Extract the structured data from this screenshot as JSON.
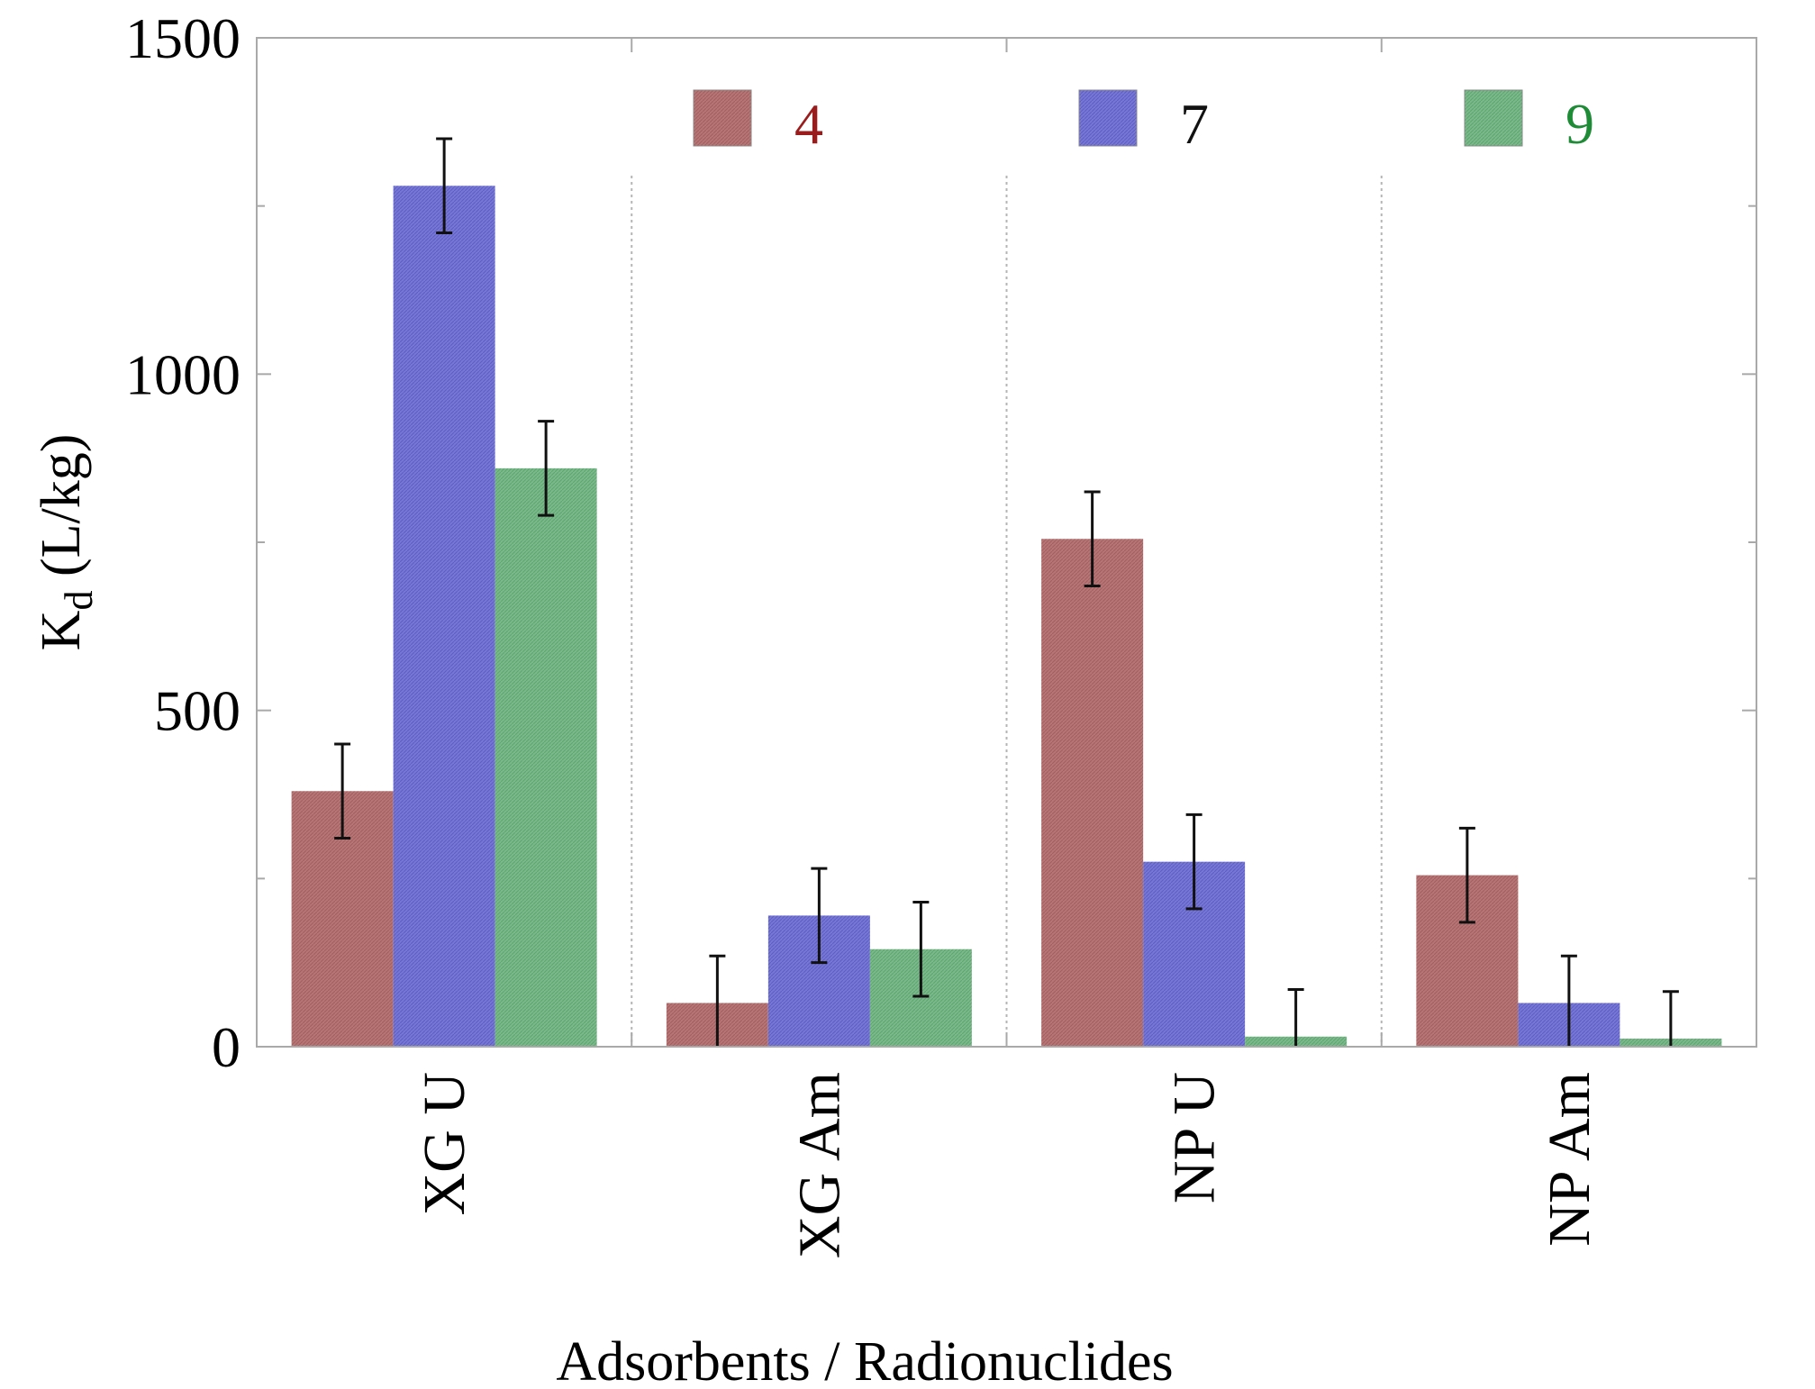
{
  "chart_data": {
    "type": "bar",
    "title": "",
    "categories": [
      "XG U",
      "XG Am",
      "NP U",
      "NP Am"
    ],
    "xlabel": "Adsorbents / Radionuclides",
    "ylabel_main": "K",
    "ylabel_sub": "d",
    "ylabel_unit": " (L/kg)",
    "ylim": [
      0,
      1500
    ],
    "yticks": [
      "0",
      "500",
      "1000",
      "1500"
    ],
    "grid": "vertical dotted separators between groups",
    "legend_position": "top",
    "series": [
      {
        "name": "4",
        "values": [
          380,
          65,
          755,
          255
        ],
        "errors": [
          70,
          70,
          70,
          70
        ],
        "color": "#b77575",
        "label_color": "#9b1c1c"
      },
      {
        "name": "7",
        "values": [
          1280,
          195,
          275,
          65
        ],
        "errors": [
          70,
          70,
          70,
          70
        ],
        "color": "#7777d6",
        "label_color": "#111111"
      },
      {
        "name": "9",
        "values": [
          860,
          145,
          15,
          12
        ],
        "errors": [
          70,
          70,
          70,
          70
        ],
        "color": "#79b98a",
        "label_color": "#1e8c36"
      }
    ]
  }
}
